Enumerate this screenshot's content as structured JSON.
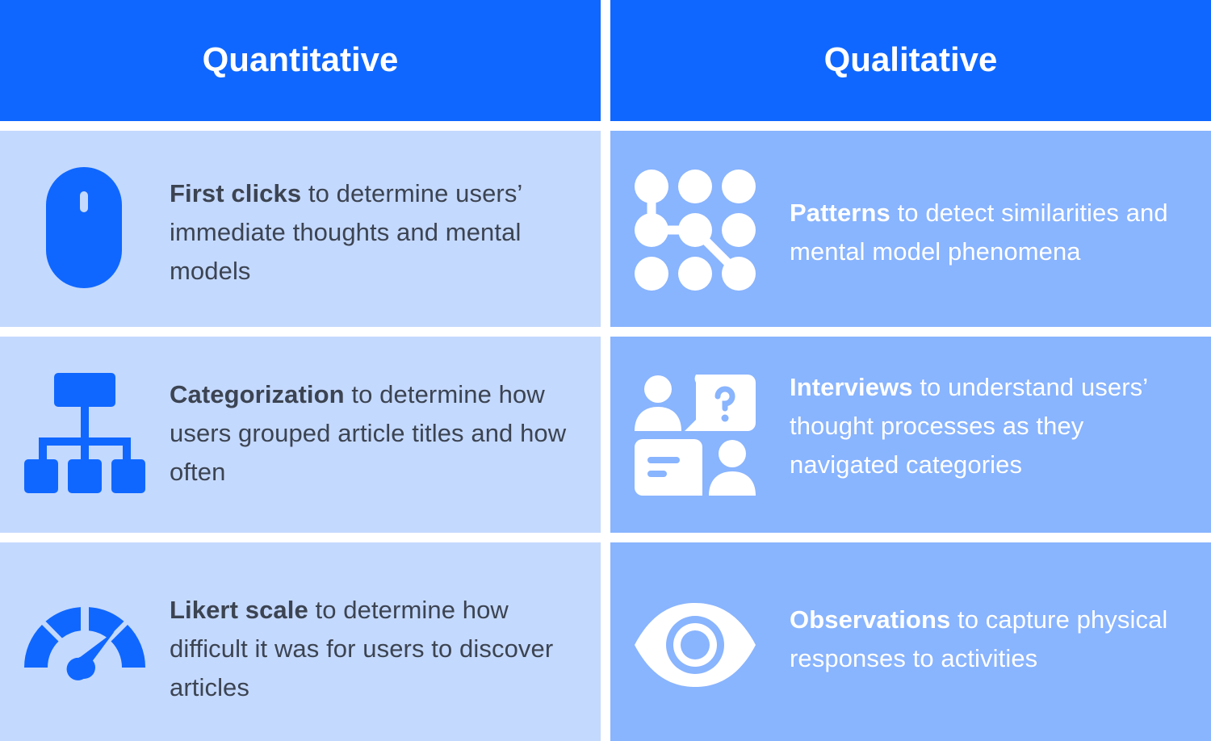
{
  "headers": {
    "quantitative": "Quantitative",
    "qualitative": "Qualitative"
  },
  "colors": {
    "header_blue": "#0f67ff",
    "left_cell": "#c4d9fe",
    "right_cell": "#89b4fe",
    "left_text": "#3c4452",
    "right_text": "#ffffff"
  },
  "quantitative": [
    {
      "icon": "mouse-icon",
      "term": "First clicks",
      "description": " to determine users’ immediate thoughts and mental models"
    },
    {
      "icon": "hierarchy-icon",
      "term": "Categorization",
      "description": " to determine how users grouped article titles and how often"
    },
    {
      "icon": "gauge-icon",
      "term": "Likert scale",
      "description": " to determine how difficult it was for users to discover articles"
    }
  ],
  "qualitative": [
    {
      "icon": "pattern-dots-icon",
      "term": "Patterns",
      "description": " to detect similarities and mental model phenomena"
    },
    {
      "icon": "interview-chat-icon",
      "term": "Interviews",
      "description": " to understand users’ thought processes as they navigated categories"
    },
    {
      "icon": "eye-icon",
      "term": "Observations",
      "description": " to capture physical responses to activities"
    }
  ]
}
